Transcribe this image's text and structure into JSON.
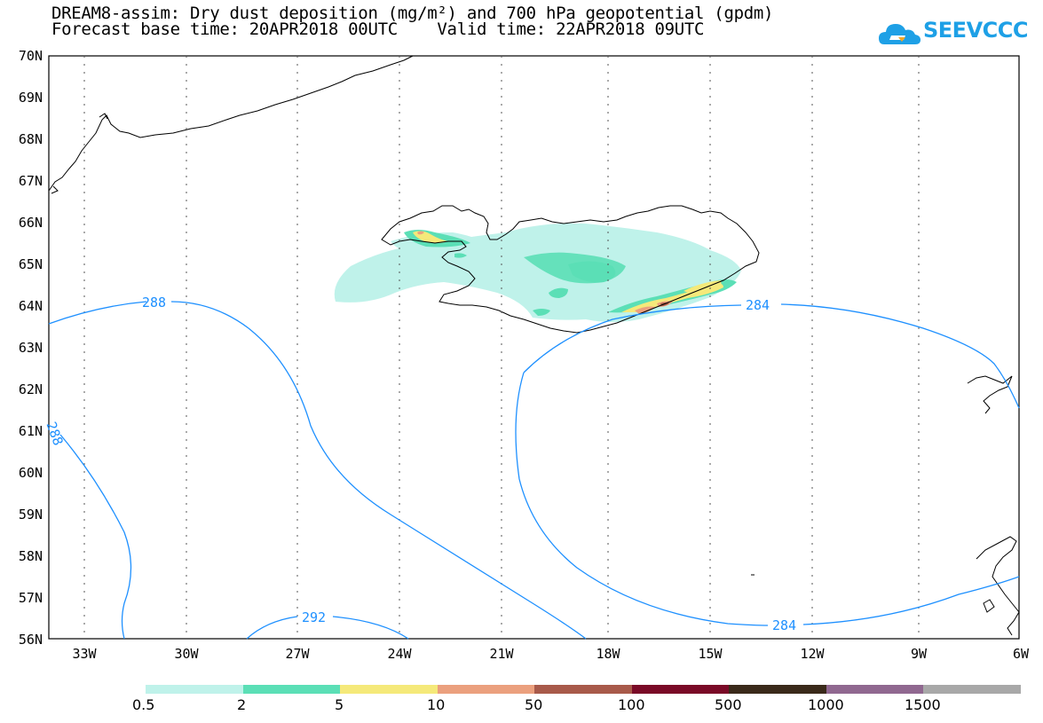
{
  "title_line1": "DREAM8-assim: Dry dust deposition (mg/m²) and 700 hPa geopotential (gpdm)",
  "title_line2": "Forecast base time: 20APR2018 00UTC    Valid time: 22APR2018 09UTC",
  "logo_text": "SEEVCCC",
  "lat_labels": [
    "70N",
    "69N",
    "68N",
    "67N",
    "66N",
    "65N",
    "64N",
    "63N",
    "62N",
    "61N",
    "60N",
    "59N",
    "58N",
    "57N",
    "56N"
  ],
  "lon_labels": [
    "33W",
    "30W",
    "27W",
    "24W",
    "21W",
    "18W",
    "15W",
    "12W",
    "9W",
    "6W"
  ],
  "contour_labels": [
    "288",
    "284",
    "284",
    "292",
    "288"
  ],
  "colorbar": {
    "labels": [
      "0.5",
      "2",
      "5",
      "10",
      "50",
      "100",
      "500",
      "1000",
      "1500"
    ],
    "colors": [
      "#bff2ea",
      "#5bdfb6",
      "#f5e97a",
      "#eba07e",
      "#a85a4a",
      "#7a0a27",
      "#3a2a1a",
      "#906890",
      "#a8a8a8"
    ]
  },
  "colors": {
    "contour": "#1e90ff",
    "land": "#000000"
  }
}
